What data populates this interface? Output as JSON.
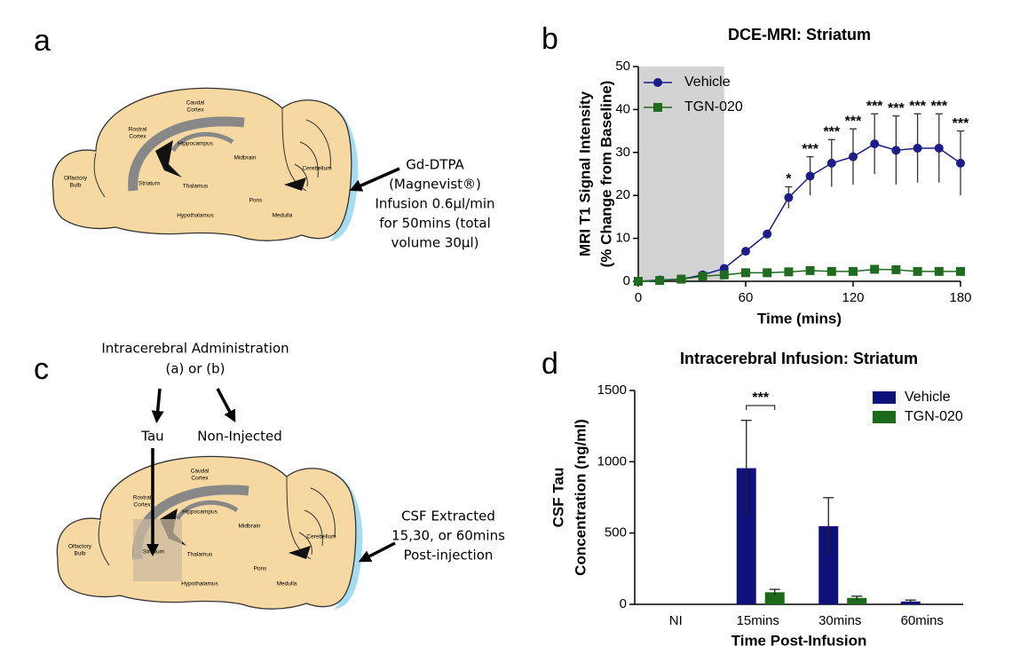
{
  "panels": [
    "a",
    "b",
    "c",
    "d"
  ],
  "diagram_a": {
    "regions": [
      [
        "Olfactory",
        "Bulb"
      ],
      [
        "Rostral",
        "Cortex"
      ],
      [
        "Caudal",
        "Cortex"
      ],
      [
        "Hippocampus"
      ],
      [
        "Striatum"
      ],
      [
        "Thalamus"
      ],
      [
        "Hypothalamus"
      ],
      [
        "Midbrain"
      ],
      [
        "Pons"
      ],
      [
        "Medulla"
      ],
      [
        "Cerebellum"
      ]
    ],
    "note": [
      "Gd-DTPA",
      "(Magnevist®)",
      "Infusion 0.6µl/min",
      "for 50mins (total",
      "volume 30µl)"
    ]
  },
  "diagram_c": {
    "regions": [
      [
        "Olfactory",
        "Bulb"
      ],
      [
        "Rostral",
        "Cortex"
      ],
      [
        "Caudal",
        "Cortex"
      ],
      [
        "Hippocampus"
      ],
      [
        "Striatum"
      ],
      [
        "Thalamus"
      ],
      [
        "Hypothalamus"
      ],
      [
        "Midbrain"
      ],
      [
        "Pons"
      ],
      [
        "Medulla"
      ],
      [
        "Cerebellum"
      ]
    ],
    "header": [
      "Intracerebral Administration",
      "(a) or (b)"
    ],
    "branches": [
      "Tau",
      "Non-Injected"
    ],
    "note": [
      "CSF Extracted",
      "15,30, or 60mins",
      "Post-injection"
    ]
  },
  "chart_data": [
    {
      "type": "line",
      "title": "DCE-MRI: Striatum",
      "xlabel": "Time (mins)",
      "ylabel": [
        "MRI T1 Signal Intensity",
        "(% Change from Baseline)"
      ],
      "x": [
        0,
        12,
        24,
        36,
        48,
        60,
        72,
        84,
        96,
        108,
        120,
        132,
        144,
        156,
        168,
        180
      ],
      "series": [
        {
          "name": "Vehicle",
          "color": "#1c1c8a",
          "marker": "circle",
          "values": [
            0,
            0.3,
            0.5,
            1.5,
            3,
            7,
            11,
            19.5,
            24.5,
            27.5,
            29,
            32,
            30.5,
            31,
            31,
            27.5
          ],
          "errors": [
            0,
            0,
            0,
            0,
            0,
            0,
            0,
            2.5,
            4.5,
            5.5,
            6.5,
            7,
            8,
            8,
            8,
            7.5
          ]
        },
        {
          "name": "TGN-020",
          "color": "#1f6b1f",
          "marker": "square",
          "values": [
            0,
            0.2,
            0.5,
            1.2,
            1.5,
            2,
            2,
            2.2,
            2.5,
            2.3,
            2.3,
            2.8,
            2.7,
            2.3,
            2.3,
            2.3
          ]
        }
      ],
      "annotations": [
        {
          "x": 84,
          "text": "*"
        },
        {
          "x": 96,
          "text": "***"
        },
        {
          "x": 108,
          "text": "***"
        },
        {
          "x": 120,
          "text": "***"
        },
        {
          "x": 132,
          "text": "***"
        },
        {
          "x": 144,
          "text": "***"
        },
        {
          "x": 156,
          "text": "***"
        },
        {
          "x": 168,
          "text": "***"
        },
        {
          "x": 180,
          "text": "***"
        }
      ],
      "shade": [
        0,
        48
      ],
      "xlim": [
        0,
        180
      ],
      "xticks": [
        0,
        60,
        120,
        180
      ],
      "ylim": [
        0,
        50
      ],
      "yticks": [
        0,
        10,
        20,
        30,
        40,
        50
      ],
      "legend": "upper left"
    },
    {
      "type": "bar",
      "title": "Intracerebral Infusion: Striatum",
      "xlabel": "Time Post-Infusion",
      "ylabel": [
        "CSF Tau",
        "Concentration (ng/ml)"
      ],
      "categories": [
        "NI",
        "15mins",
        "30mins",
        "60mins"
      ],
      "series": [
        {
          "name": "Vehicle",
          "color": "#10107a",
          "values": [
            0,
            955,
            548,
            20
          ],
          "errors": [
            0,
            335,
            200,
            10
          ]
        },
        {
          "name": "TGN-020",
          "color": "#1a6a1a",
          "values": [
            0,
            85,
            45,
            0
          ],
          "errors": [
            0,
            20,
            12,
            0
          ]
        }
      ],
      "annotations": [
        {
          "category": "15mins",
          "text": "***"
        }
      ],
      "ylim": [
        0,
        1500
      ],
      "yticks": [
        0,
        500,
        1000,
        1500
      ],
      "legend": "upper right"
    }
  ]
}
